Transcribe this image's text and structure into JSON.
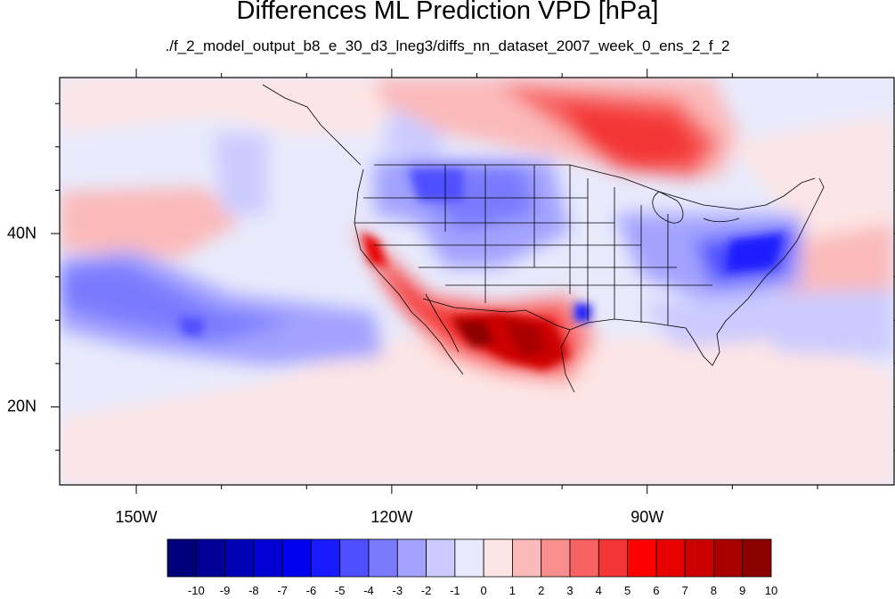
{
  "title": "Differences ML Prediction VPD [hPa]",
  "subtitle": "./f_2_model_output_b8_e_30_d3_lneg3/diffs_nn_dataset_2007_week_0_ens_2_f_2",
  "map": {
    "variable": "VPD difference",
    "units": "hPa",
    "lon_range": [
      -159,
      -61
    ],
    "lat_range": [
      11,
      58
    ],
    "lon_labels": [
      {
        "lon": -150,
        "label": "150W"
      },
      {
        "lon": -120,
        "label": "120W"
      },
      {
        "lon": -90,
        "label": "90W"
      }
    ],
    "lat_labels": [
      {
        "lat": 40,
        "label": "40N"
      },
      {
        "lat": 20,
        "label": "20N"
      }
    ],
    "features": [
      {
        "name": "Southwest US / Mexico",
        "sign": "positive",
        "max": 10
      },
      {
        "name": "California coast",
        "sign": "positive",
        "max": 7
      },
      {
        "name": "Central Canada",
        "sign": "positive",
        "max": 6
      },
      {
        "name": "Northwest US",
        "sign": "negative",
        "min": -4
      },
      {
        "name": "East US / Ohio Valley",
        "sign": "negative",
        "min": -5
      },
      {
        "name": "Eastern Pacific",
        "sign": "negative",
        "min": -4
      }
    ]
  },
  "colorbar": {
    "labels": [
      "-10",
      "-9",
      "-8",
      "-7",
      "-6",
      "-5",
      "-4",
      "-3",
      "-2",
      "-1",
      "0",
      "1",
      "2",
      "3",
      "4",
      "5",
      "6",
      "7",
      "8",
      "9",
      "10"
    ],
    "colors": [
      "#00007a",
      "#000095",
      "#0000b4",
      "#0000d2",
      "#0000ef",
      "#1a1aff",
      "#4f4fff",
      "#7a7aff",
      "#a3a3ff",
      "#cbcbff",
      "#e8eafc",
      "#fde5e5",
      "#fbbaba",
      "#f98e8e",
      "#f76262",
      "#f43535",
      "#ff0000",
      "#e60000",
      "#cc0000",
      "#a80000",
      "#8b0000"
    ]
  },
  "colors": {
    "positive": "#f43535",
    "negative": "#4f4fff",
    "neutral": "#e8eafc"
  }
}
